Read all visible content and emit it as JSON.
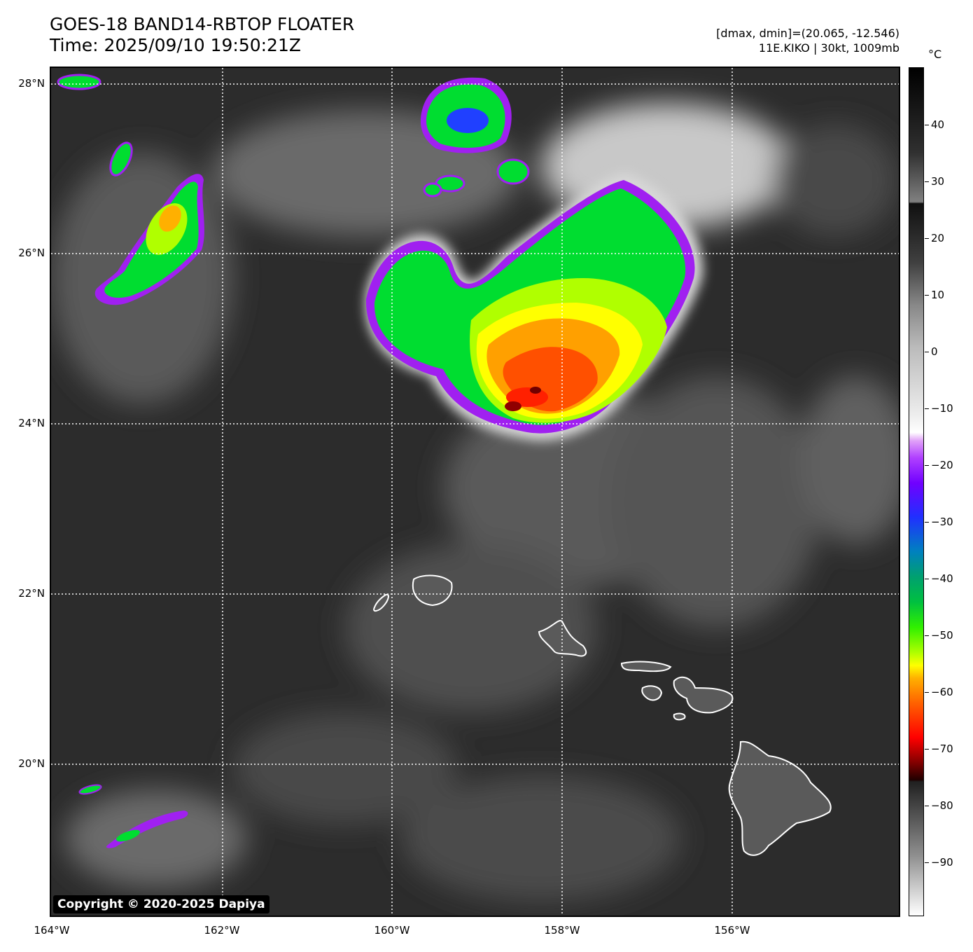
{
  "title": {
    "line1": "GOES-18 BAND14-RBTOP FLOATER",
    "line2": "Time: 2025/09/10 19:50:21Z"
  },
  "info": {
    "line1": "[dmax, dmin]=(20.065, -12.546)",
    "line2": "11E.KIKO | 30kt, 1009mb"
  },
  "copyright": "Copyright © 2020-2025 Dapiya",
  "lat_labels": [
    "28°N",
    "26°N",
    "24°N",
    "22°N",
    "20°N"
  ],
  "lon_labels": [
    "164°W",
    "162°W",
    "160°W",
    "158°W",
    "156°W"
  ],
  "colorbar": {
    "unit": "°C",
    "tick_labels": [
      "40",
      "30",
      "20",
      "10",
      "0",
      "−10",
      "−20",
      "−30",
      "−40",
      "−50",
      "−60",
      "−70",
      "−80",
      "−90"
    ]
  },
  "colors": {
    "background_cloudfree": "#2c2c2c",
    "cold_top_core": "#ff3000",
    "deep_convection": "#ffff00",
    "anvil": "#00dd30",
    "edge_purple": "#a020f0",
    "coastline": "#ffffff"
  }
}
